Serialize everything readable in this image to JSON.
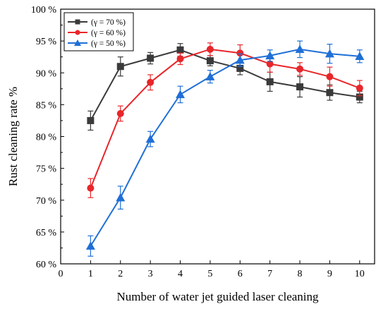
{
  "chart_data": {
    "type": "line",
    "title": "",
    "xlabel": "Number of water jet guided laser cleaning",
    "ylabel": "Rust cleaning rate %",
    "xlim": [
      0,
      10.5
    ],
    "ylim": [
      60,
      100
    ],
    "x_ticks": [
      0,
      1,
      2,
      3,
      4,
      5,
      6,
      7,
      8,
      9,
      10
    ],
    "y_ticks": [
      60,
      65,
      70,
      75,
      80,
      85,
      90,
      95,
      100
    ],
    "y_tick_labels": [
      "60 %",
      "65 %",
      "70 %",
      "75 %",
      "80 %",
      "85 %",
      "90 %",
      "95 %",
      "100 %"
    ],
    "legend_position": "top-left",
    "x": [
      1,
      2,
      3,
      4,
      5,
      6,
      7,
      8,
      9,
      10
    ],
    "series": [
      {
        "name": "(γ = 70 %)",
        "color": "#3a3a3a",
        "marker": "square",
        "values": [
          82.5,
          91.0,
          92.3,
          93.6,
          91.9,
          90.7,
          88.6,
          87.8,
          86.9,
          86.2
        ],
        "errors": [
          1.5,
          1.5,
          0.9,
          1.0,
          0.8,
          1.0,
          1.5,
          1.6,
          1.2,
          0.9
        ]
      },
      {
        "name": "(γ = 60 %)",
        "color": "#e8262a",
        "marker": "circle",
        "values": [
          71.9,
          83.6,
          88.5,
          92.2,
          93.7,
          93.1,
          91.4,
          90.6,
          89.4,
          87.6
        ],
        "errors": [
          1.5,
          1.2,
          1.2,
          0.9,
          1.0,
          1.3,
          1.3,
          1.0,
          1.5,
          1.2
        ]
      },
      {
        "name": "(γ = 50 %)",
        "color": "#1f6fd6",
        "marker": "triangle",
        "values": [
          62.8,
          70.4,
          79.6,
          86.6,
          89.4,
          92.0,
          92.7,
          93.7,
          93.0,
          92.6
        ],
        "errors": [
          1.6,
          1.8,
          1.2,
          1.3,
          1.0,
          1.0,
          0.9,
          1.3,
          1.5,
          1.0
        ]
      }
    ]
  }
}
